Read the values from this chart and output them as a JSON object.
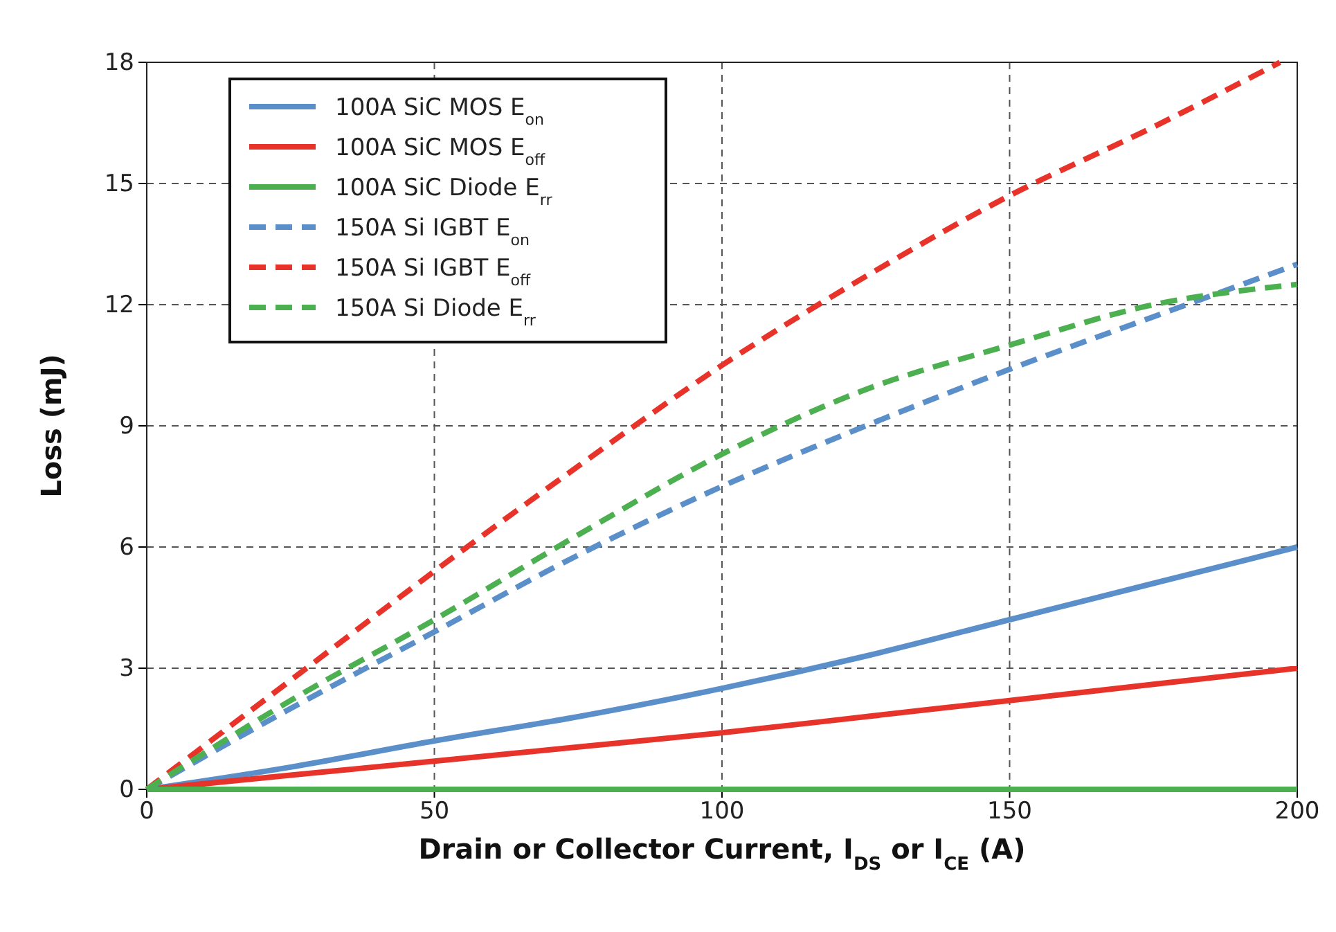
{
  "chart_data": {
    "type": "line",
    "xlabel": "Drain or Collector Current, I$_{DS}$ or I$_{CE}$ (A)",
    "ylabel": "Loss (mJ)",
    "x": [
      0,
      25,
      50,
      75,
      100,
      125,
      150,
      175,
      200
    ],
    "xlim": [
      0,
      200
    ],
    "xticks": [
      0,
      50,
      100,
      150,
      200
    ],
    "ylim": [
      0,
      18
    ],
    "yticks": [
      0,
      3,
      6,
      9,
      12,
      15,
      18
    ],
    "grid": true,
    "legend": "top left",
    "marker": "none",
    "series": [
      {
        "name": "100A SiC MOS E$_{on}$",
        "color": "#5b8fc9",
        "line_style": "solid",
        "values": [
          0,
          0.55,
          1.2,
          1.8,
          2.5,
          3.3,
          4.2,
          5.1,
          6.0
        ]
      },
      {
        "name": "100A SiC MOS E$_{off}$",
        "color": "#e8332b",
        "line_style": "solid",
        "values": [
          0,
          0.35,
          0.7,
          1.05,
          1.4,
          1.8,
          2.2,
          2.6,
          3.0
        ]
      },
      {
        "name": "100A SiC Diode E$_{rr}$",
        "color": "#4caf50",
        "line_style": "solid",
        "values": [
          0,
          0,
          0,
          0,
          0,
          0,
          0,
          0,
          0
        ]
      },
      {
        "name": "150A Si IGBT E$_{on}$",
        "color": "#5b8fc9",
        "line_style": "dashed",
        "values": [
          0,
          2.0,
          3.9,
          5.8,
          7.5,
          9.0,
          10.4,
          11.7,
          13.0
        ]
      },
      {
        "name": "150A Si IGBT E$_{off}$",
        "color": "#e8332b",
        "line_style": "dashed",
        "x": [
          0,
          25,
          50,
          75,
          100,
          125,
          150,
          175,
          197
        ],
        "values": [
          0,
          2.7,
          5.4,
          8.0,
          10.5,
          12.7,
          14.7,
          16.4,
          18.0
        ]
      },
      {
        "name": "150A Si Diode E$_{rr}$",
        "color": "#4caf50",
        "line_style": "dashed",
        "values": [
          0,
          2.2,
          4.2,
          6.3,
          8.3,
          9.9,
          11.0,
          12.0,
          12.5
        ]
      }
    ]
  }
}
